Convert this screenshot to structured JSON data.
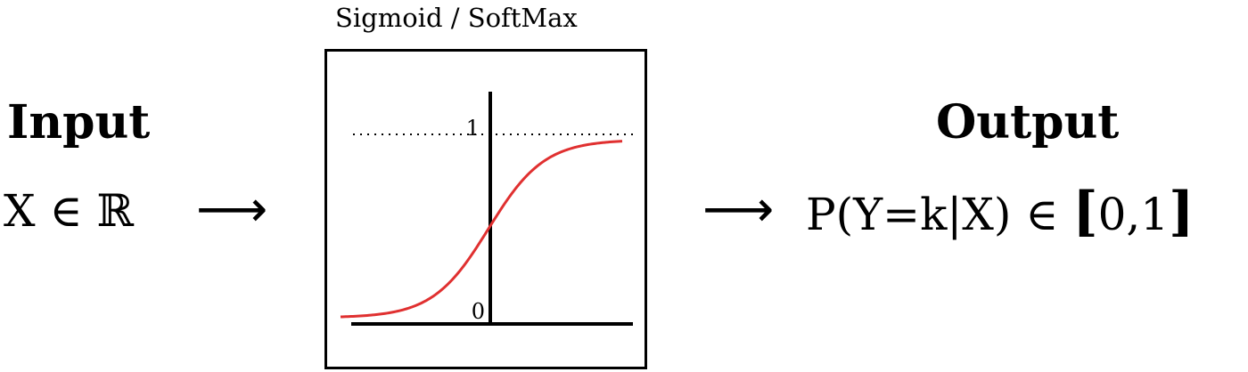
{
  "input": {
    "heading": "Input",
    "variable": "X",
    "element_of": "∈",
    "domain": "ℝ"
  },
  "arrow_left": "⟶",
  "arrow_right": "⟶",
  "function_box": {
    "title": "Sigmoid / SoftMax",
    "y_label_top": "1",
    "y_label_bottom": "0",
    "curve_color": "#e03030",
    "curve_type": "sigmoid",
    "asymptote_style": "dotted"
  },
  "output": {
    "heading": "Output",
    "prob_open": "P(",
    "prob_var": "Y",
    "prob_eq": "=",
    "prob_k": "k",
    "prob_bar": "|",
    "prob_given": "X",
    "prob_close": ")",
    "element_of": "∈",
    "bracket_open": "[",
    "interval": "0,1",
    "bracket_close": "]"
  }
}
